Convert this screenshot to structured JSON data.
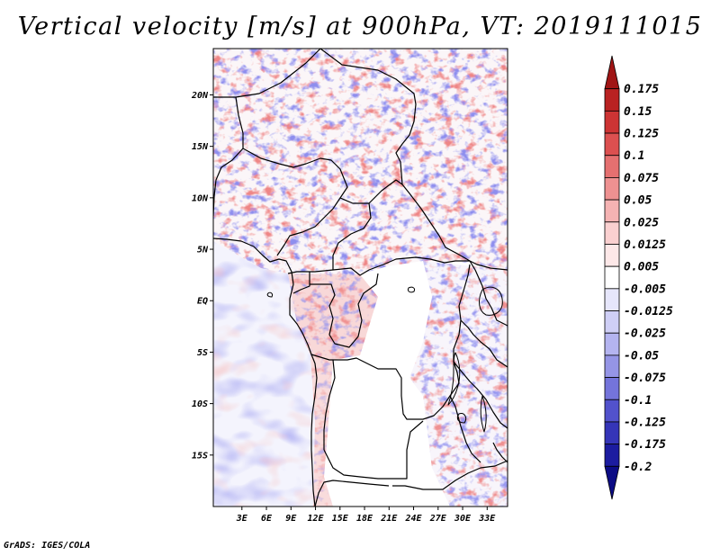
{
  "title": "Vertical velocity [m/s] at 900hPa, VT: 2019111015",
  "footer": "GrADS: IGES/COLA",
  "map": {
    "region": "Central Africa",
    "variable": "Vertical velocity",
    "units": "m/s",
    "level": "900hPa",
    "valid_time": "2019111015",
    "lon_range": [
      -0.5,
      35.5
    ],
    "lat_range": [
      -20,
      24.5
    ],
    "y_ticks": [
      {
        "label": "20N",
        "lat": 20
      },
      {
        "label": "15N",
        "lat": 15
      },
      {
        "label": "10N",
        "lat": 10
      },
      {
        "label": "5N",
        "lat": 5
      },
      {
        "label": "EQ",
        "lat": 0
      },
      {
        "label": "5S",
        "lat": -5
      },
      {
        "label": "10S",
        "lat": -10
      },
      {
        "label": "15S",
        "lat": -15
      }
    ],
    "x_ticks": [
      {
        "label": "3E",
        "lon": 3
      },
      {
        "label": "6E",
        "lon": 6
      },
      {
        "label": "9E",
        "lon": 9
      },
      {
        "label": "12E",
        "lon": 12
      },
      {
        "label": "15E",
        "lon": 15
      },
      {
        "label": "18E",
        "lon": 18
      },
      {
        "label": "21E",
        "lon": 21
      },
      {
        "label": "24E",
        "lon": 24
      },
      {
        "label": "27E",
        "lon": 27
      },
      {
        "label": "30E",
        "lon": 30
      },
      {
        "label": "33E",
        "lon": 33
      }
    ]
  },
  "colorbar": {
    "bins": [
      {
        "color": "#a01515",
        "label": "0.175"
      },
      {
        "color": "#b92222",
        "label": "0.15"
      },
      {
        "color": "#cd3434",
        "label": "0.125"
      },
      {
        "color": "#dc5050",
        "label": "0.1"
      },
      {
        "color": "#e57070",
        "label": "0.075"
      },
      {
        "color": "#ee9191",
        "label": "0.05"
      },
      {
        "color": "#f5b3b3",
        "label": "0.025"
      },
      {
        "color": "#fad0d0",
        "label": "0.0125"
      },
      {
        "color": "#fde8e8",
        "label": "0.005"
      },
      {
        "color": "#ffffff",
        "label": "-0.005"
      },
      {
        "color": "#e6e6fb",
        "label": "-0.0125"
      },
      {
        "color": "#cfcff6",
        "label": "-0.025"
      },
      {
        "color": "#b4b4f0",
        "label": "-0.05"
      },
      {
        "color": "#9595e6",
        "label": "-0.075"
      },
      {
        "color": "#7474db",
        "label": "-0.1"
      },
      {
        "color": "#5252cc",
        "label": "-0.125"
      },
      {
        "color": "#3535b8",
        "label": "-0.175"
      },
      {
        "color": "#1c1ca0",
        "label": "-0.2"
      },
      {
        "color": "#0c0c85",
        "label": ""
      }
    ]
  }
}
